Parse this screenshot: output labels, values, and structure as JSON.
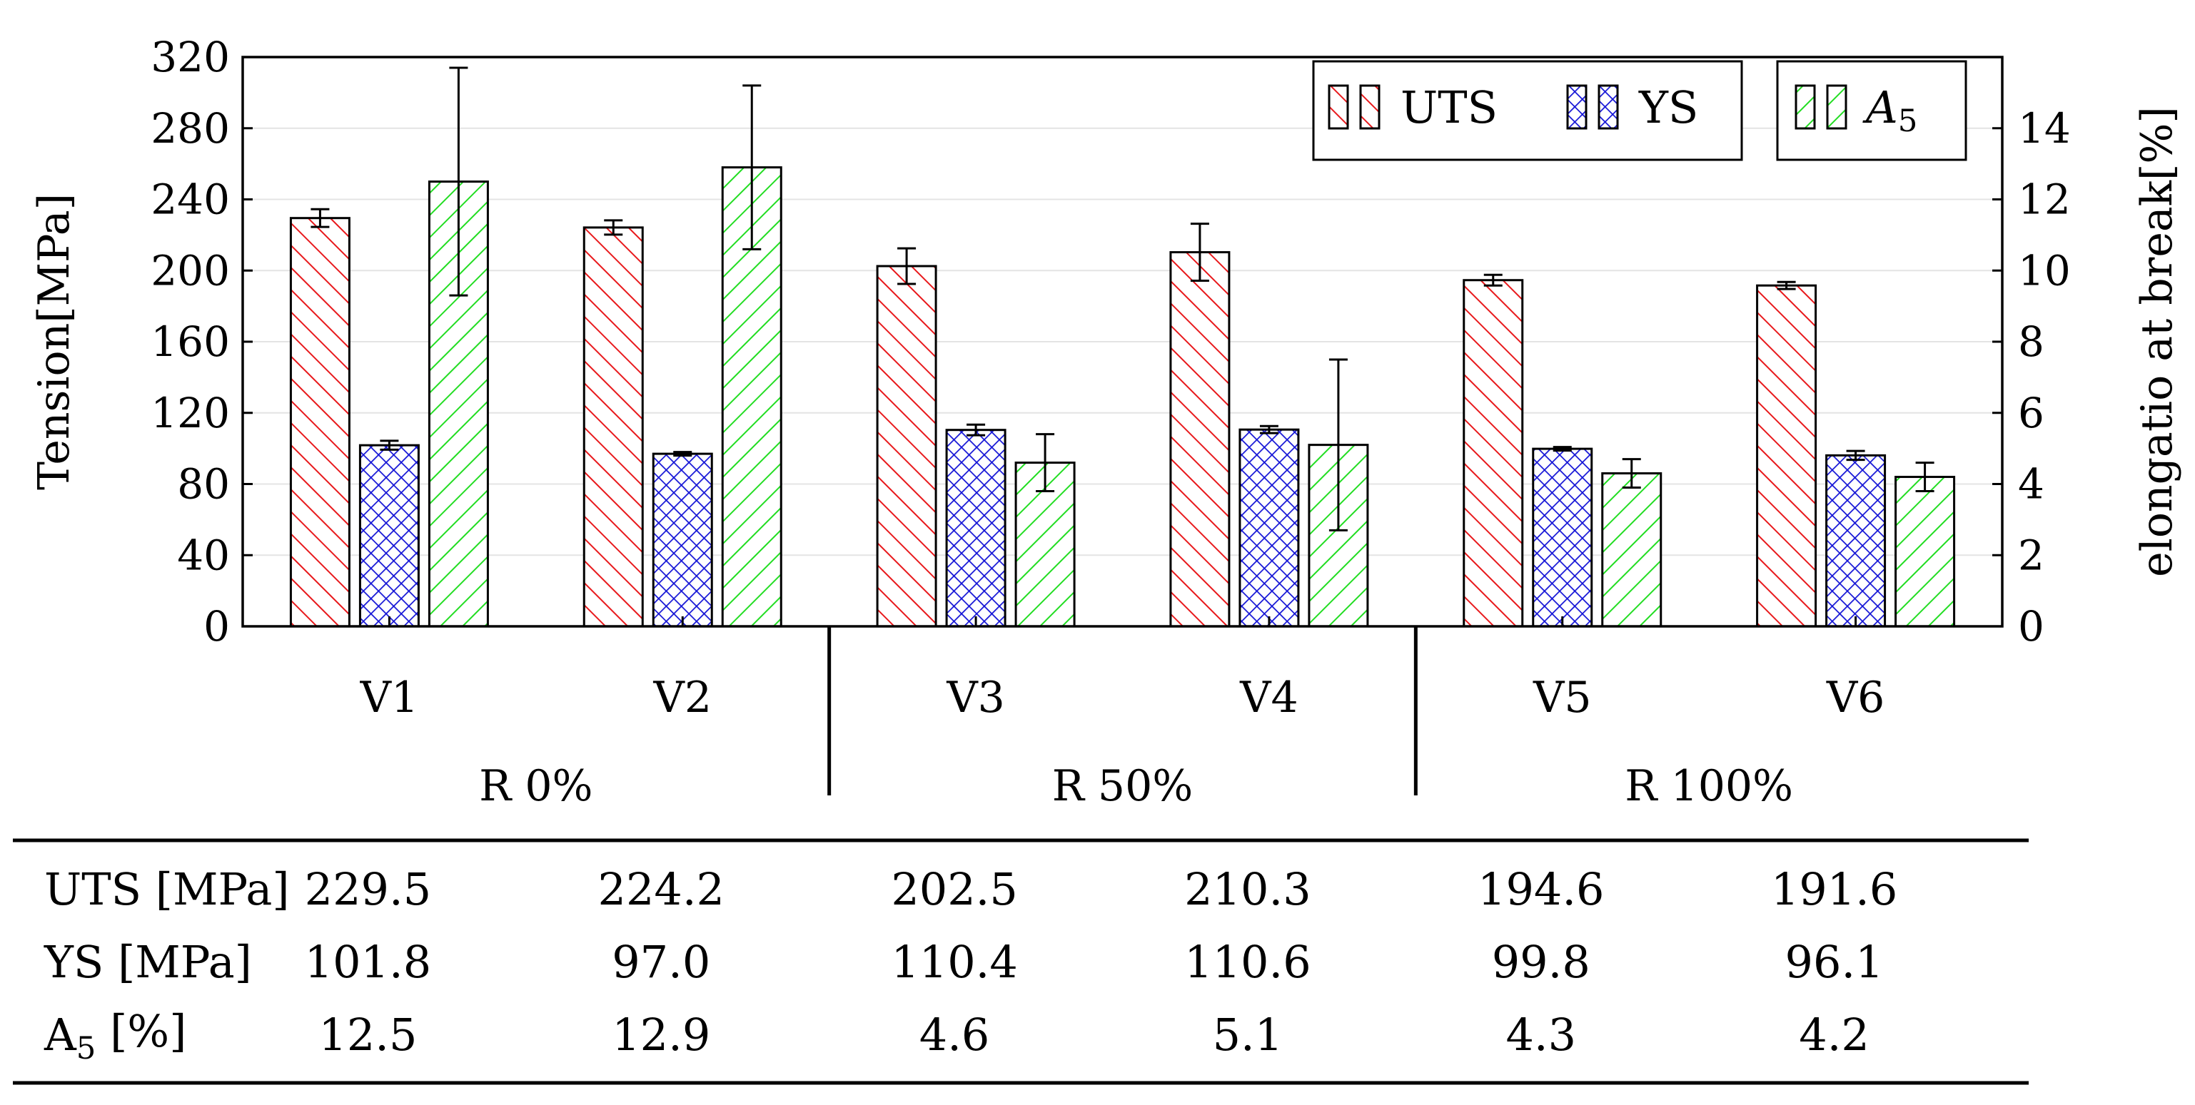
{
  "chart_data": {
    "type": "bar",
    "categories": [
      "V1",
      "V2",
      "V3",
      "V4",
      "V5",
      "V6"
    ],
    "groups": [
      {
        "label": "R 0%",
        "categories": [
          "V1",
          "V2"
        ]
      },
      {
        "label": "R 50%",
        "categories": [
          "V3",
          "V4"
        ]
      },
      {
        "label": "R 100%",
        "categories": [
          "V5",
          "V6"
        ]
      }
    ],
    "series": [
      {
        "name": "UTS",
        "axis": "left",
        "color": "#e8191c",
        "pattern": "north-west-lines",
        "values": [
          229.5,
          224.2,
          202.5,
          210.3,
          194.6,
          191.6
        ],
        "error": [
          5,
          4,
          10,
          16,
          3,
          2
        ]
      },
      {
        "name": "YS",
        "axis": "left",
        "color": "#1515d6",
        "pattern": "crosshatch",
        "values": [
          101.8,
          97.0,
          110.4,
          110.6,
          99.8,
          96.1
        ],
        "error": [
          2.5,
          1,
          3,
          2,
          1,
          2.5
        ]
      },
      {
        "name": "A5",
        "axis": "right",
        "color": "#22dd22",
        "pattern": "north-east-lines",
        "values": [
          12.5,
          12.9,
          4.6,
          5.1,
          4.3,
          4.2
        ],
        "error": [
          3.2,
          2.3,
          0.8,
          2.4,
          0.4,
          0.4
        ]
      }
    ],
    "ylabel": "Tension[MPa]",
    "ylim": [
      0,
      320
    ],
    "yticks": [
      0,
      40,
      80,
      120,
      160,
      200,
      240,
      280,
      320
    ],
    "y2label": "elongatio at break[%]",
    "y2lim": [
      0,
      16
    ],
    "y2ticks": [
      0,
      2,
      4,
      6,
      8,
      10,
      12,
      14
    ],
    "legend_placement": "top-right",
    "grid": "horizontal",
    "table": {
      "rows": [
        {
          "label": "UTS [MPa]",
          "values": [
            "229.5",
            "224.2",
            "202.5",
            "210.3",
            "194.6",
            "191.6"
          ]
        },
        {
          "label": "YS [MPa]",
          "values": [
            "101.8",
            "97.0",
            "110.4",
            "110.6",
            "99.8",
            "96.1"
          ]
        },
        {
          "label": "A5 [%]",
          "values": [
            "12.5",
            "12.9",
            "4.6",
            "5.1",
            "4.3",
            "4.2"
          ]
        }
      ]
    }
  }
}
